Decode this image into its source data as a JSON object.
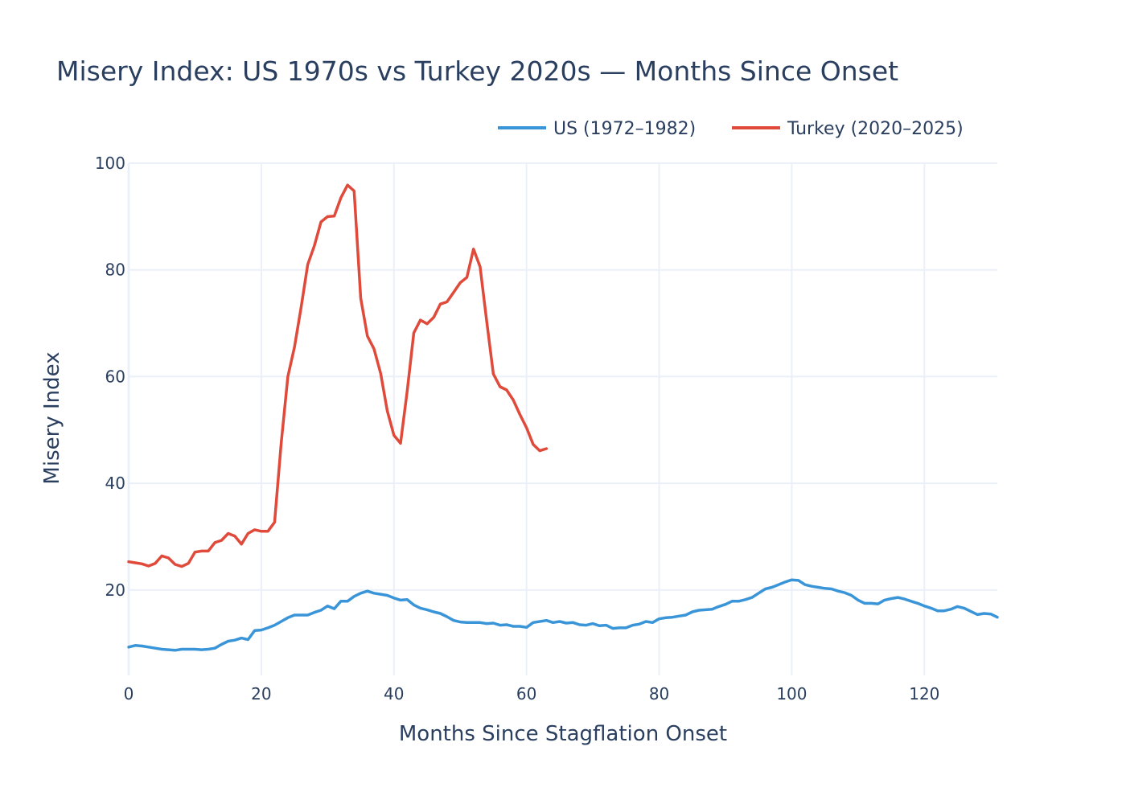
{
  "chart_data": {
    "type": "line",
    "title": "Misery Index: US 1970s vs Turkey 2020s — Months Since Onset",
    "xlabel": "Months Since Stagflation Onset",
    "ylabel": "Misery Index",
    "xlim": [
      0,
      131
    ],
    "ylim": [
      4,
      100
    ],
    "x_ticks": [
      0,
      20,
      40,
      60,
      80,
      100,
      120
    ],
    "y_ticks": [
      20,
      40,
      60,
      80,
      100
    ],
    "grid": true,
    "legend_position": "top-right",
    "series": [
      {
        "name": "US (1972–1982)",
        "color": "#3a95d8",
        "values": [
          9.3,
          9.6,
          9.5,
          9.3,
          9.1,
          8.9,
          8.8,
          8.7,
          8.9,
          8.9,
          8.9,
          8.8,
          8.9,
          9.1,
          9.8,
          10.4,
          10.6,
          11.0,
          10.7,
          12.4,
          12.5,
          12.9,
          13.4,
          14.1,
          14.8,
          15.3,
          15.3,
          15.3,
          15.8,
          16.2,
          17.0,
          16.5,
          17.9,
          17.9,
          18.8,
          19.4,
          19.8,
          19.4,
          19.2,
          19.0,
          18.5,
          18.1,
          18.2,
          17.2,
          16.6,
          16.3,
          15.9,
          15.6,
          15.0,
          14.3,
          14.0,
          13.9,
          13.9,
          13.9,
          13.7,
          13.8,
          13.4,
          13.5,
          13.2,
          13.2,
          13.0,
          13.9,
          14.1,
          14.3,
          13.9,
          14.1,
          13.8,
          13.9,
          13.5,
          13.4,
          13.7,
          13.3,
          13.4,
          12.8,
          12.9,
          12.9,
          13.4,
          13.6,
          14.1,
          13.9,
          14.6,
          14.8,
          14.9,
          15.1,
          15.3,
          15.9,
          16.2,
          16.3,
          16.4,
          16.9,
          17.3,
          17.9,
          17.9,
          18.2,
          18.6,
          19.4,
          20.2,
          20.5,
          21.0,
          21.5,
          21.9,
          21.8,
          21.0,
          20.7,
          20.5,
          20.3,
          20.2,
          19.8,
          19.5,
          19.0,
          18.1,
          17.5,
          17.5,
          17.4,
          18.1,
          18.4,
          18.6,
          18.3,
          17.9,
          17.5,
          17.0,
          16.6,
          16.1,
          16.1,
          16.4,
          16.9,
          16.6,
          16.0,
          15.4,
          15.6,
          15.5,
          14.9
        ]
      },
      {
        "name": "Turkey (2020–2025)",
        "color": "#e04a3b",
        "values": [
          25.3,
          25.1,
          24.9,
          24.5,
          25.0,
          26.4,
          26.0,
          24.8,
          24.4,
          25.0,
          27.1,
          27.3,
          27.3,
          28.9,
          29.3,
          30.6,
          30.1,
          28.6,
          30.6,
          31.3,
          31.0,
          31.0,
          32.7,
          47.5,
          60.0,
          65.5,
          73.0,
          81.0,
          84.5,
          89.0,
          90.0,
          90.1,
          93.5,
          95.9,
          94.8,
          74.7,
          67.6,
          65.2,
          60.6,
          53.6,
          49.0,
          47.5,
          57.3,
          68.2,
          70.6,
          69.9,
          71.1,
          73.6,
          74.0,
          75.8,
          77.6,
          78.6,
          83.9,
          80.6,
          70.3,
          60.5,
          58.1,
          57.5,
          55.6,
          52.9,
          50.4,
          47.3,
          46.1,
          46.5
        ]
      }
    ]
  }
}
